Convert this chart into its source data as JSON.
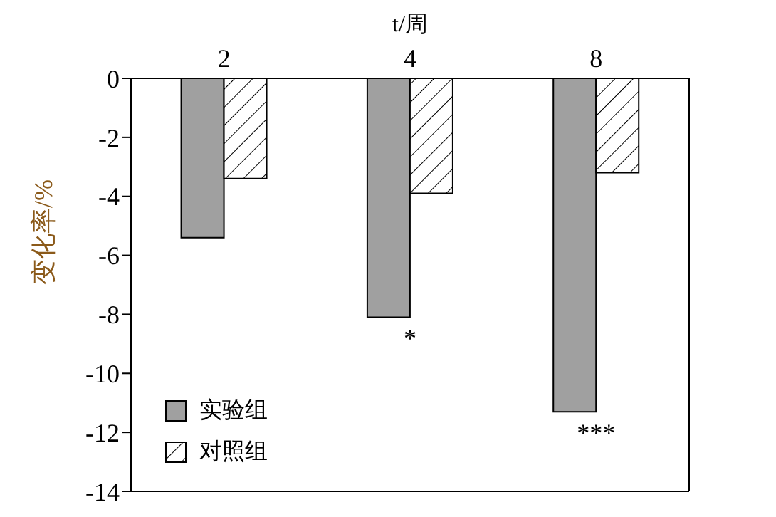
{
  "chart_data": {
    "type": "bar",
    "xlabel": "t/周",
    "ylabel": "变化率/%",
    "categories": [
      "2",
      "4",
      "8"
    ],
    "series": [
      {
        "name": "实验组",
        "color": "#a0a0a0",
        "values": [
          -5.4,
          -8.1,
          -11.3
        ]
      },
      {
        "name": "对照组",
        "color": "#000000",
        "values": [
          -3.4,
          -3.9,
          -3.2
        ]
      }
    ],
    "ylim": [
      -14,
      0
    ],
    "yticks": [
      -14,
      -12,
      -10,
      -8,
      -6,
      -4,
      -2,
      0
    ],
    "annotations": [
      {
        "text": "*",
        "x": "4",
        "y": -8.1
      },
      {
        "text": "***",
        "x": "8",
        "y": -11.3
      }
    ],
    "grid": false,
    "legend": "bottom left"
  }
}
